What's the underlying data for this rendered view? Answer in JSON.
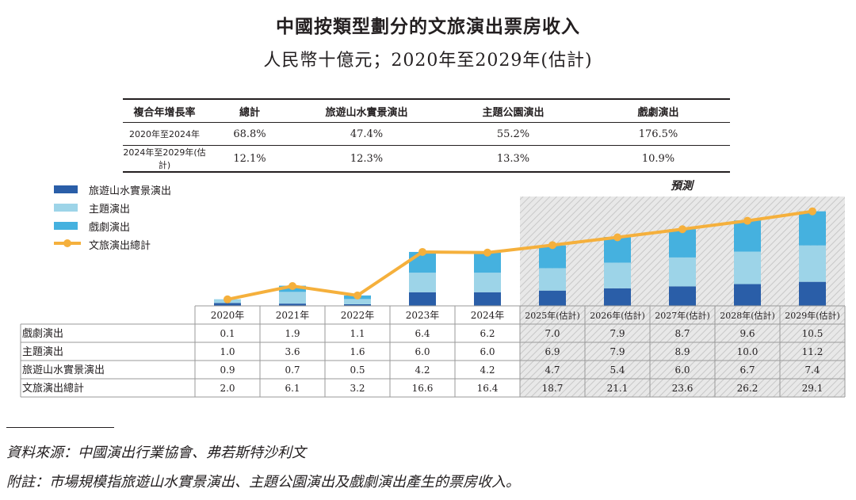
{
  "title": "中國按類型劃分的文旅演出票房收入",
  "subtitle": "人民幣十億元；2020年至2029年(估計)",
  "cagr_table": {
    "headers": [
      "複合年增長率",
      "總計",
      "旅遊山水實景演出",
      "主題公園演出",
      "戲劇演出"
    ],
    "rows": [
      [
        "2020年至2024年",
        "68.8%",
        "47.4%",
        "55.2%",
        "176.5%"
      ],
      [
        "2024年至2029年(估計)",
        "12.1%",
        "12.3%",
        "13.3%",
        "10.9%"
      ]
    ]
  },
  "forecast_label": "預測",
  "colors": {
    "landscape": "#2a5ea8",
    "theme": "#9dd4e8",
    "drama": "#45b1df",
    "total_line": "#f5b03c",
    "forecast_bg": "#e8e8e8"
  },
  "chart_data": {
    "type": "bar",
    "stacked": true,
    "title": "中國按類型劃分的文旅演出票房收入",
    "ylabel": "人民幣十億元",
    "categories": [
      "2020年",
      "2021年",
      "2022年",
      "2023年",
      "2024年",
      "2025年(估計)",
      "2026年(估計)",
      "2027年(估計)",
      "2028年(估計)",
      "2029年(估計)"
    ],
    "forecast_start_index": 5,
    "series": [
      {
        "name": "旅遊山水實景演出",
        "key": "landscape",
        "values": [
          0.9,
          0.7,
          0.5,
          4.2,
          4.2,
          4.7,
          5.4,
          6.0,
          6.7,
          7.4
        ]
      },
      {
        "name": "主題演出",
        "key": "theme",
        "values": [
          1.0,
          3.6,
          1.6,
          6.0,
          6.0,
          6.9,
          7.9,
          8.9,
          10.0,
          11.2
        ]
      },
      {
        "name": "戲劇演出",
        "key": "drama",
        "values": [
          0.1,
          1.9,
          1.1,
          6.4,
          6.2,
          7.0,
          7.9,
          8.7,
          9.6,
          10.5
        ]
      }
    ],
    "total_series": {
      "name": "文旅演出總計",
      "type": "line",
      "values": [
        2.0,
        6.1,
        3.2,
        16.6,
        16.4,
        18.7,
        21.1,
        23.6,
        26.2,
        29.1
      ]
    },
    "data_table": {
      "row_labels": [
        "戲劇演出",
        "主題演出",
        "旅遊山水實景演出",
        "文旅演出總計"
      ],
      "rows": [
        [
          "0.1",
          "1.9",
          "1.1",
          "6.4",
          "6.2",
          "7.0",
          "7.9",
          "8.7",
          "9.6",
          "10.5"
        ],
        [
          "1.0",
          "3.6",
          "1.6",
          "6.0",
          "6.0",
          "6.9",
          "7.9",
          "8.9",
          "10.0",
          "11.2"
        ],
        [
          "0.9",
          "0.7",
          "0.5",
          "4.2",
          "4.2",
          "4.7",
          "5.4",
          "6.0",
          "6.7",
          "7.4"
        ],
        [
          "2.0",
          "6.1",
          "3.2",
          "16.6",
          "16.4",
          "18.7",
          "21.1",
          "23.6",
          "26.2",
          "29.1"
        ]
      ]
    },
    "legend": [
      "旅遊山水實景演出",
      "主題演出",
      "戲劇演出",
      "文旅演出總計"
    ],
    "legend_position": "top-left"
  },
  "source": "資料來源：中國演出行業協會、弗若斯特沙利文",
  "remark": "附註：市場規模指旅遊山水實景演出、主題公園演出及戲劇演出產生的票房收入。"
}
